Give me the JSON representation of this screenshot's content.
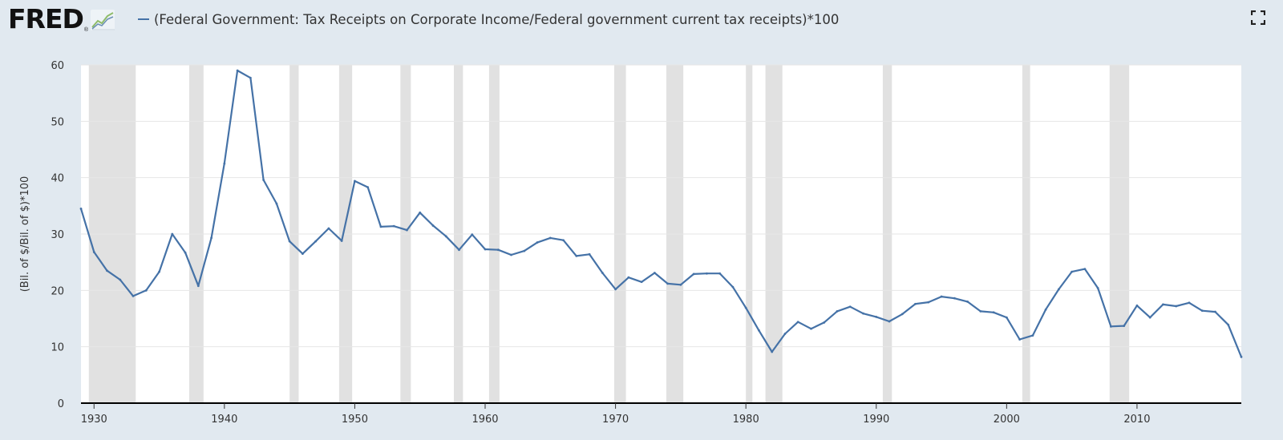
{
  "header": {
    "logo_text": "FRED",
    "logo_reg": "®",
    "title": "(Federal Government: Tax Receipts on Corporate Income/Federal government current tax receipts)*100"
  },
  "colors": {
    "line": "#4572a7",
    "recession": "#e1e1e1",
    "plot_bg": "#ffffff",
    "page_bg": "#e1e9f0",
    "grid": "#e6e6e6"
  },
  "icons": [
    "fred-sparkline-icon",
    "fullscreen-icon"
  ],
  "chart_data": {
    "type": "line",
    "title": "(Federal Government: Tax Receipts on Corporate Income/Federal government current tax receipts)*100",
    "ylabel": "(Bil. of $/Bil. of $)*100",
    "xlabel": "",
    "xlim": [
      1929,
      2018
    ],
    "ylim": [
      0,
      60
    ],
    "x_ticks": [
      "1930",
      "1940",
      "1950",
      "1960",
      "1970",
      "1980",
      "1990",
      "2000",
      "2010"
    ],
    "y_ticks": [
      "0",
      "10",
      "20",
      "30",
      "40",
      "50",
      "60"
    ],
    "grid": true,
    "recessions": [
      [
        1929.6,
        1933.2
      ],
      [
        1937.3,
        1938.4
      ],
      [
        1945.0,
        1945.7
      ],
      [
        1948.8,
        1949.8
      ],
      [
        1953.5,
        1954.3
      ],
      [
        1957.6,
        1958.3
      ],
      [
        1960.3,
        1961.1
      ],
      [
        1969.9,
        1970.8
      ],
      [
        1973.9,
        1975.2
      ],
      [
        1980.0,
        1980.5
      ],
      [
        1981.5,
        1982.8
      ],
      [
        1990.5,
        1991.2
      ],
      [
        2001.2,
        2001.8
      ],
      [
        2007.9,
        2009.4
      ]
    ],
    "series": [
      {
        "x": [
          1929,
          1930,
          1931,
          1932,
          1933,
          1934,
          1935,
          1936,
          1937,
          1938,
          1939,
          1940,
          1941,
          1942,
          1943,
          1944,
          1945,
          1946,
          1947,
          1948,
          1949,
          1950,
          1951,
          1952,
          1953,
          1954,
          1955,
          1956,
          1957,
          1958,
          1959,
          1960,
          1961,
          1962,
          1963,
          1964,
          1965,
          1966,
          1967,
          1968,
          1969,
          1970,
          1971,
          1972,
          1973,
          1974,
          1975,
          1976,
          1977,
          1978,
          1979,
          1980,
          1981,
          1982,
          1983,
          1984,
          1985,
          1986,
          1987,
          1988,
          1989,
          1990,
          1991,
          1992,
          1993,
          1994,
          1995,
          1996,
          1997,
          1998,
          1999,
          2000,
          2001,
          2002,
          2003,
          2004,
          2005,
          2006,
          2007,
          2008,
          2009,
          2010,
          2011,
          2012,
          2013,
          2014,
          2015,
          2016,
          2017,
          2018
        ],
        "values": [
          34.5,
          26.8,
          23.5,
          21.9,
          19.0,
          20.0,
          23.3,
          30.0,
          26.7,
          20.8,
          29.3,
          42.5,
          59.0,
          57.7,
          39.6,
          35.4,
          28.7,
          26.5,
          28.7,
          31.0,
          28.8,
          39.4,
          38.3,
          31.3,
          31.4,
          30.7,
          33.8,
          31.5,
          29.6,
          27.2,
          29.9,
          27.3,
          27.2,
          26.3,
          27.0,
          28.5,
          29.3,
          28.9,
          26.1,
          26.4,
          23.1,
          20.2,
          22.3,
          21.5,
          23.1,
          21.2,
          21.0,
          22.9,
          23.0,
          23.0,
          20.6,
          16.9,
          12.9,
          9.1,
          12.3,
          14.4,
          13.2,
          14.3,
          16.3,
          17.1,
          15.9,
          15.3,
          14.5,
          15.8,
          17.6,
          17.9,
          18.9,
          18.6,
          18.0,
          16.3,
          16.1,
          15.2,
          11.3,
          12.0,
          16.6,
          20.2,
          23.3,
          23.8,
          20.4,
          13.6,
          13.7,
          17.3,
          15.2,
          17.5,
          17.2,
          17.8,
          16.4,
          16.2,
          13.9,
          8.2
        ]
      }
    ]
  }
}
